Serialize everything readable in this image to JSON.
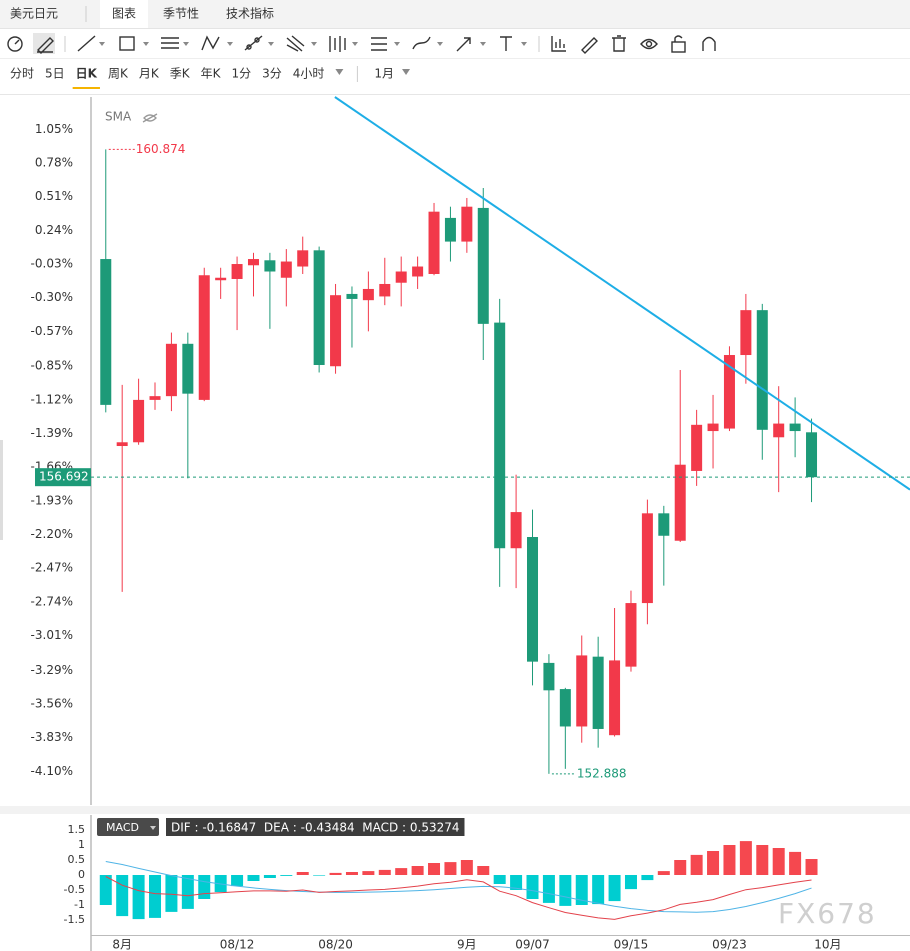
{
  "header": {
    "symbol": "美元日元",
    "tabs": [
      "图表",
      "季节性",
      "技术指标"
    ],
    "active_tab": 0
  },
  "periods": {
    "items": [
      "分时",
      "5日",
      "日K",
      "周K",
      "月K",
      "季K",
      "年K",
      "1分",
      "3分",
      "4小时"
    ],
    "active": 2,
    "range": "1月"
  },
  "chart_data": [
    {
      "type": "candlestick",
      "indicator": "SMA",
      "xlim": [
        -0.9,
        49
      ],
      "ylim": [
        -4.37,
        1.31
      ],
      "yticks": [
        {
          "value": 1.05,
          "label": "1.05%"
        },
        {
          "value": 0.78,
          "label": "0.78%"
        },
        {
          "value": 0.51,
          "label": "0.51%"
        },
        {
          "value": 0.24,
          "label": "0.24%"
        },
        {
          "value": -0.03,
          "label": "-0.03%"
        },
        {
          "value": -0.3,
          "label": "-0.30%"
        },
        {
          "value": -0.57,
          "label": "-0.57%"
        },
        {
          "value": -0.85,
          "label": "-0.85%"
        },
        {
          "value": -1.12,
          "label": "-1.12%"
        },
        {
          "value": -1.39,
          "label": "-1.39%"
        },
        {
          "value": -1.66,
          "label": "-1.66%"
        },
        {
          "value": -1.93,
          "label": "-1.93%"
        },
        {
          "value": -2.2,
          "label": "-2.20%"
        },
        {
          "value": -2.47,
          "label": "-2.47%"
        },
        {
          "value": -2.74,
          "label": "-2.74%"
        },
        {
          "value": -3.01,
          "label": "-3.01%"
        },
        {
          "value": -3.29,
          "label": "-3.29%"
        },
        {
          "value": -3.56,
          "label": "-3.56%"
        },
        {
          "value": -3.83,
          "label": "-3.83%"
        },
        {
          "value": -4.1,
          "label": "-4.10%"
        }
      ],
      "open": [
        0.01,
        -1.49,
        -1.46,
        -1.12,
        -1.09,
        -0.67,
        -1.12,
        -0.16,
        -0.15,
        -0.04,
        0,
        -0.14,
        -0.05,
        0.08,
        -0.85,
        -0.27,
        -0.32,
        -0.29,
        -0.18,
        -0.13,
        -0.11,
        0.34,
        0.15,
        0.42,
        -0.5,
        -2.31,
        -2.22,
        -3.23,
        -3.44,
        -3.74,
        -3.18,
        -3.81,
        -3.26,
        -2.75,
        -2.03,
        -2.25,
        -1.69,
        -1.37,
        -1.35,
        -0.76,
        -0.4,
        -1.42,
        -1.31,
        -1.38
      ],
      "high": [
        0.89,
        -1,
        -0.95,
        -0.98,
        -0.58,
        -0.58,
        -0.06,
        -0.06,
        0.03,
        0.06,
        0.06,
        0.09,
        0.19,
        0.11,
        -0.19,
        -0.21,
        -0.09,
        0.02,
        0.03,
        0.03,
        0.46,
        0.43,
        0.5,
        0.58,
        -0.31,
        -1.72,
        -2,
        -3.16,
        -3.43,
        -3.01,
        -3.02,
        -2.79,
        -2.65,
        -1.92,
        -1.97,
        -0.88,
        -1.2,
        -1.08,
        -0.69,
        -0.27,
        -0.35,
        -1.01,
        -1.1,
        -1.27
      ],
      "low": [
        -1.22,
        -2.66,
        -1.48,
        -1.2,
        -1.21,
        -1.75,
        -1.13,
        -0.31,
        -0.56,
        -0.29,
        -0.55,
        -0.37,
        -0.11,
        -0.9,
        -0.91,
        -0.7,
        -0.57,
        -0.36,
        -0.37,
        -0.23,
        -0.12,
        -0.01,
        0.06,
        -0.8,
        -2.62,
        -2.63,
        -3.41,
        -4.12,
        -4.08,
        -3.87,
        -3.91,
        -3.82,
        -3.3,
        -2.92,
        -2.61,
        -2.26,
        -1.81,
        -1.67,
        -1.37,
        -0.99,
        -1.6,
        -1.86,
        -1.58,
        -1.94
      ],
      "close": [
        -1.16,
        -1.46,
        -1.12,
        -1.09,
        -0.67,
        -1.07,
        -0.12,
        -0.14,
        -0.03,
        0.01,
        -0.09,
        -0.01,
        0.08,
        -0.84,
        -0.28,
        -0.31,
        -0.23,
        -0.19,
        -0.09,
        -0.05,
        0.39,
        0.15,
        0.43,
        -0.51,
        -2.31,
        -2.02,
        -3.22,
        -3.45,
        -3.74,
        -3.17,
        -3.76,
        -3.21,
        -2.75,
        -2.03,
        -2.21,
        -1.64,
        -1.32,
        -1.31,
        -0.76,
        -0.4,
        -1.36,
        -1.31,
        -1.37,
        -1.74
      ],
      "up_color": "#f2394a",
      "down_color": "#1d9a78",
      "high_label": 160.874,
      "low_label": 152.888,
      "last_price": 156.692,
      "trendline": {
        "x": [
          13.96,
          49
        ],
        "y": [
          1.31,
          -1.84
        ],
        "color": "#1eaee6"
      }
    },
    {
      "type": "macd",
      "title": "MACD",
      "readout": "DIF : -0.16847  DEA : -0.43484  MACD : 0.53274",
      "xlim": [
        -0.9,
        49
      ],
      "ylim": [
        -2,
        2
      ],
      "yticks": [
        1.5,
        1,
        0.5,
        0,
        -0.5,
        -1,
        -1.5
      ],
      "xticks": [
        {
          "value": 1,
          "label": "8月"
        },
        {
          "value": 8,
          "label": "08/12"
        },
        {
          "value": 14,
          "label": "08/20"
        },
        {
          "value": 22,
          "label": "9月"
        },
        {
          "value": 26,
          "label": "09/07"
        },
        {
          "value": 32,
          "label": "09/15"
        },
        {
          "value": 38,
          "label": "09/23"
        },
        {
          "value": 44,
          "label": "10月"
        }
      ],
      "histogram": {
        "values": [
          -1,
          -1.37,
          -1.47,
          -1.43,
          -1.23,
          -1.13,
          -0.8,
          -0.57,
          -0.37,
          -0.2,
          -0.1,
          -0.03,
          0.1,
          -0.02,
          0.07,
          0.1,
          0.13,
          0.17,
          0.23,
          0.3,
          0.4,
          0.43,
          0.5,
          0.3,
          -0.3,
          -0.5,
          -0.8,
          -0.93,
          -1.03,
          -1,
          -0.97,
          -0.87,
          -0.47,
          -0.17,
          0.13,
          0.5,
          0.67,
          0.8,
          1,
          1.13,
          1,
          0.9,
          0.77,
          0.53274
        ],
        "up_color": "#f5484f",
        "down_color": "#00cdd0"
      },
      "dif": {
        "values": [
          -0.05,
          -0.34,
          -0.52,
          -0.62,
          -0.64,
          -0.69,
          -0.62,
          -0.59,
          -0.56,
          -0.53,
          -0.53,
          -0.54,
          -0.5,
          -0.58,
          -0.55,
          -0.53,
          -0.5,
          -0.48,
          -0.43,
          -0.37,
          -0.29,
          -0.24,
          -0.16,
          -0.23,
          -0.54,
          -0.69,
          -0.92,
          -1.09,
          -1.25,
          -1.34,
          -1.43,
          -1.48,
          -1.36,
          -1.27,
          -1.16,
          -0.98,
          -0.91,
          -0.82,
          -0.65,
          -0.49,
          -0.42,
          -0.33,
          -0.24,
          -0.16847
        ],
        "color": "#e3424b"
      },
      "dea": {
        "values": [
          0.45,
          0.35,
          0.22,
          0.1,
          -0.02,
          -0.12,
          -0.22,
          -0.3,
          -0.37,
          -0.43,
          -0.48,
          -0.52,
          -0.55,
          -0.57,
          -0.58,
          -0.58,
          -0.57,
          -0.56,
          -0.54,
          -0.52,
          -0.49,
          -0.45,
          -0.41,
          -0.38,
          -0.39,
          -0.44,
          -0.52,
          -0.62,
          -0.73,
          -0.84,
          -0.94,
          -1.04,
          -1.12,
          -1.18,
          -1.22,
          -1.23,
          -1.24,
          -1.22,
          -1.15,
          -1.05,
          -0.92,
          -0.78,
          -0.62,
          -0.43484
        ],
        "color": "#4fb4e6"
      }
    }
  ],
  "watermark": "FX678"
}
